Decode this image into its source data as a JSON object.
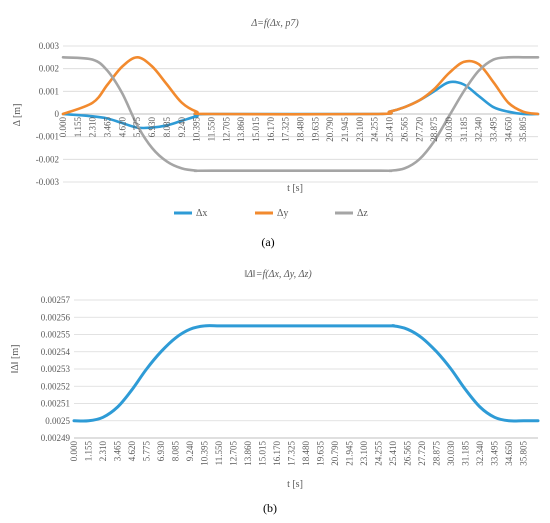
{
  "colors": {
    "dx": "#2E9BD6",
    "dy": "#F28A2E",
    "dz": "#A5A5A5",
    "grid": "#D9D9D9",
    "axis": "#BFBFBF"
  },
  "chart_data": [
    {
      "type": "line",
      "panel_label": "(a)",
      "title": "Δ=f(Δx, p7)",
      "xlabel": "t [s]",
      "ylabel": "Δ [m]",
      "xlim": [
        0,
        36.96
      ],
      "ylim": [
        -0.003,
        0.003
      ],
      "yticks": [
        "0.003",
        "0.002",
        "0.001",
        "0",
        "-0.001",
        "-0.002",
        "-0.003"
      ],
      "yvalues": [
        0.003,
        0.002,
        0.001,
        0,
        -0.001,
        -0.002,
        -0.003
      ],
      "xticks": [
        "0.000",
        "1.155",
        "2.310",
        "3.465",
        "4.620",
        "5.775",
        "6.930",
        "8.085",
        "9.240",
        "10.395",
        "11.550",
        "12.705",
        "13.860",
        "15.015",
        "16.170",
        "17.325",
        "18.480",
        "19.635",
        "20.790",
        "21.945",
        "23.100",
        "24.255",
        "25.410",
        "26.565",
        "27.720",
        "28.875",
        "30.030",
        "31.185",
        "32.340",
        "33.495",
        "34.650",
        "35.805"
      ],
      "legend_position": "bottom",
      "series": [
        {
          "name": "Δx",
          "color_key": "dx",
          "x": [
            0,
            2.31,
            3.47,
            4.62,
            5.78,
            6.93,
            8.09,
            9.24,
            10.4,
            11.55,
            24.26,
            25.41,
            26.57,
            27.72,
            28.88,
            30.03,
            31.19,
            32.34,
            33.5,
            34.65,
            35.81,
            36.96
          ],
          "y": [
            0,
            -0.0001,
            -0.0002,
            -0.0004,
            -0.0006,
            -0.0006,
            -0.0005,
            -0.0003,
            -0.0001,
            0,
            0,
            0.0001,
            0.0003,
            0.0006,
            0.001,
            0.0014,
            0.0013,
            0.0008,
            0.0003,
            0.0001,
            0,
            0
          ]
        },
        {
          "name": "Δy",
          "color_key": "dy",
          "x": [
            0,
            2.31,
            3.47,
            4.62,
            5.78,
            6.93,
            8.09,
            9.24,
            10.4,
            11.55,
            24.26,
            25.41,
            26.57,
            27.72,
            28.88,
            30.03,
            31.19,
            32.34,
            33.5,
            34.65,
            35.81,
            36.96
          ],
          "y": [
            0,
            0.0005,
            0.0013,
            0.0021,
            0.0025,
            0.0021,
            0.0013,
            0.0005,
            0.0001,
            0,
            0,
            0.0001,
            0.0003,
            0.0006,
            0.0011,
            0.0018,
            0.0023,
            0.0022,
            0.0014,
            0.0005,
            0.0001,
            0
          ]
        },
        {
          "name": "Δz",
          "color_key": "dz",
          "x": [
            0,
            2.31,
            3.47,
            4.62,
            5.78,
            6.93,
            8.09,
            9.24,
            10.4,
            11.55,
            24.26,
            25.41,
            26.57,
            27.72,
            28.88,
            30.03,
            31.19,
            32.34,
            33.5,
            34.65,
            35.81,
            36.96
          ],
          "y": [
            0.0025,
            0.0024,
            0.0019,
            0.0009,
            -0.0005,
            -0.0015,
            -0.0021,
            -0.0024,
            -0.0025,
            -0.0025,
            -0.0025,
            -0.0025,
            -0.0024,
            -0.002,
            -0.0012,
            -0.0001,
            0.001,
            0.0019,
            0.0024,
            0.0025,
            0.0025,
            0.0025
          ]
        }
      ]
    },
    {
      "type": "line",
      "panel_label": "(b)",
      "title": "‖Δ‖=f(Δx, Δy, Δz)",
      "xlabel": "t [s]",
      "ylabel": "‖Δ‖ [m]",
      "xlim": [
        0,
        36.96
      ],
      "ylim": [
        0.00249,
        0.00257
      ],
      "yticks": [
        "0.00257",
        "0.00256",
        "0.00255",
        "0.00254",
        "0.00253",
        "0.00252",
        "0.00251",
        "0.0025",
        "0.00249"
      ],
      "yvalues": [
        0.00257,
        0.00256,
        0.00255,
        0.00254,
        0.00253,
        0.00252,
        0.00251,
        0.0025,
        0.00249
      ],
      "xticks": [
        "0.000",
        "1.155",
        "2.310",
        "3.465",
        "4.620",
        "5.775",
        "6.930",
        "8.085",
        "9.240",
        "10.395",
        "11.550",
        "12.705",
        "13.860",
        "15.015",
        "16.170",
        "17.325",
        "18.480",
        "19.635",
        "20.790",
        "21.945",
        "23.100",
        "24.255",
        "25.410",
        "26.565",
        "27.720",
        "28.875",
        "30.030",
        "31.185",
        "32.340",
        "33.495",
        "34.650",
        "35.805"
      ],
      "series": [
        {
          "color_key": "dx",
          "x": [
            0,
            1.16,
            2.31,
            3.47,
            4.62,
            5.78,
            6.93,
            8.09,
            9.24,
            10.4,
            11.55,
            12.71,
            24.26,
            25.41,
            26.57,
            27.72,
            28.88,
            30.03,
            31.19,
            32.34,
            33.5,
            34.65,
            35.81,
            36.96
          ],
          "y": [
            0.0025,
            0.0025,
            0.002502,
            0.002508,
            0.002518,
            0.00253,
            0.00254,
            0.002548,
            0.002553,
            0.002555,
            0.002555,
            0.002555,
            0.002555,
            0.002555,
            0.002553,
            0.002548,
            0.00254,
            0.00253,
            0.002518,
            0.002508,
            0.002502,
            0.0025,
            0.0025,
            0.0025
          ]
        }
      ]
    }
  ]
}
